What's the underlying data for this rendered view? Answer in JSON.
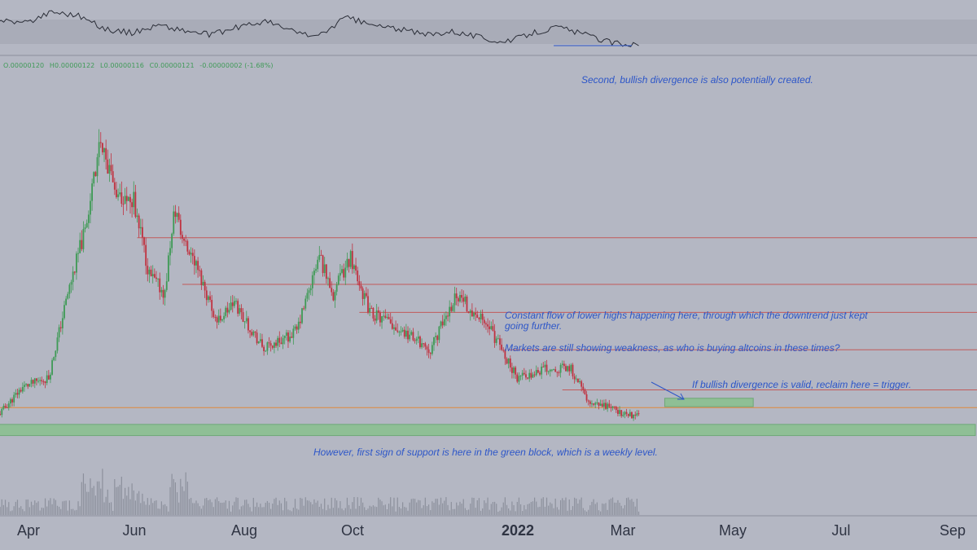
{
  "legend": {
    "open": "O.00000120",
    "high": "H0.00000122",
    "low": "L0.00000116",
    "close": "C0.00000121",
    "change": "-0.00000002 (-1.68%)"
  },
  "annotations": {
    "divergence_second": "Second, bullish divergence is also potentially created.",
    "lower_highs": "Constant flow of lower highs happening here, through which the downtrend just kept going further.",
    "weakness": "Markets are still showing weakness, as who is buying altcoins in these times?",
    "reclaim": "If bullish divergence is valid, reclaim here = trigger.",
    "support": "However, first sign of support is here in the green block, which is a weekly level."
  },
  "colors": {
    "background": "#b4b7c3",
    "up": "#3e9a55",
    "down": "#c0313f",
    "resistance_line": "#c25a5a",
    "orange_line": "#e0883a",
    "support_zone": "#8fbf95",
    "annotation_text": "#2d56c8",
    "oscillator": "#2a2d37"
  },
  "chart_data": {
    "type": "candlestick",
    "x_axis": {
      "ticks": [
        "Apr",
        "Jun",
        "Aug",
        "Oct",
        "2022",
        "Mar",
        "May",
        "Jul",
        "Sep"
      ],
      "tick_dates": [
        "2021-04-01",
        "2021-06-01",
        "2021-08-01",
        "2021-10-01",
        "2022-01-01",
        "2022-03-01",
        "2022-05-01",
        "2022-07-01",
        "2022-09-01"
      ],
      "range": [
        "2021-03-01",
        "2022-09-15"
      ]
    },
    "y_range": [
      9.5e-07,
      4.6e-06
    ],
    "price_path": [
      [
        "2021-03-01",
        1.2e-06
      ],
      [
        "2021-03-15",
        1.5e-06
      ],
      [
        "2021-03-30",
        1.6e-06
      ],
      [
        "2021-04-10",
        2.5e-06
      ],
      [
        "2021-04-20",
        3.2e-06
      ],
      [
        "2021-04-28",
        4.1e-06
      ],
      [
        "2021-05-08",
        3.6e-06
      ],
      [
        "2021-05-18",
        3.5e-06
      ],
      [
        "2021-05-27",
        2.7e-06
      ],
      [
        "2021-06-05",
        2.5e-06
      ],
      [
        "2021-06-10",
        3.4e-06
      ],
      [
        "2021-06-25",
        2.7e-06
      ],
      [
        "2021-07-05",
        2.2e-06
      ],
      [
        "2021-07-15",
        2.4e-06
      ],
      [
        "2021-08-01",
        1.9e-06
      ],
      [
        "2021-08-20",
        2.1e-06
      ],
      [
        "2021-09-02",
        2.9e-06
      ],
      [
        "2021-09-10",
        2.5e-06
      ],
      [
        "2021-09-20",
        2.9e-06
      ],
      [
        "2021-10-01",
        2.3e-06
      ],
      [
        "2021-10-20",
        2.1e-06
      ],
      [
        "2021-11-05",
        1.9e-06
      ],
      [
        "2021-11-20",
        2.5e-06
      ],
      [
        "2021-12-10",
        2.1e-06
      ],
      [
        "2021-12-25",
        1.6e-06
      ],
      [
        "2022-01-10",
        1.7e-06
      ],
      [
        "2022-01-25",
        1.7e-06
      ],
      [
        "2022-02-05",
        1.3e-06
      ],
      [
        "2022-02-15",
        1.3e-06
      ],
      [
        "2022-02-25",
        1.2e-06
      ],
      [
        "2022-03-05",
        1.2e-06
      ]
    ],
    "oscillator": {
      "values": [
        62,
        58,
        70,
        66,
        52,
        48,
        56,
        50,
        46,
        54,
        60,
        50,
        44,
        64,
        56,
        52,
        46,
        50,
        44,
        38,
        48,
        54,
        46,
        38,
        36
      ],
      "bullish_divergence_line": [
        [
          "2022-01-15",
          35
        ],
        [
          "2022-03-01",
          35
        ]
      ]
    },
    "horizontal_levels": [
      {
        "value": 3.1e-06,
        "color": "#c25a5a",
        "start": "2021-05-20"
      },
      {
        "value": 2.6e-06,
        "color": "#c25a5a",
        "start": "2021-06-15"
      },
      {
        "value": 2.3e-06,
        "color": "#c25a5a",
        "start": "2021-09-25"
      },
      {
        "value": 1.9e-06,
        "color": "#c25a5a",
        "start": "2021-12-20"
      },
      {
        "value": 1.47e-06,
        "color": "#c25a5a",
        "start": "2022-01-20"
      },
      {
        "value": 1.28e-06,
        "color": "#e0883a",
        "start": "2021-03-01"
      }
    ],
    "zones": [
      {
        "label": "weekly support",
        "from": 9.8e-07,
        "to": 1.1e-06,
        "start": "2021-03-01",
        "end": "2022-09-15"
      },
      {
        "label": "reclaim trigger",
        "from": 1.29e-06,
        "to": 1.38e-06,
        "start": "2022-03-20",
        "end": "2022-05-10"
      }
    ]
  }
}
